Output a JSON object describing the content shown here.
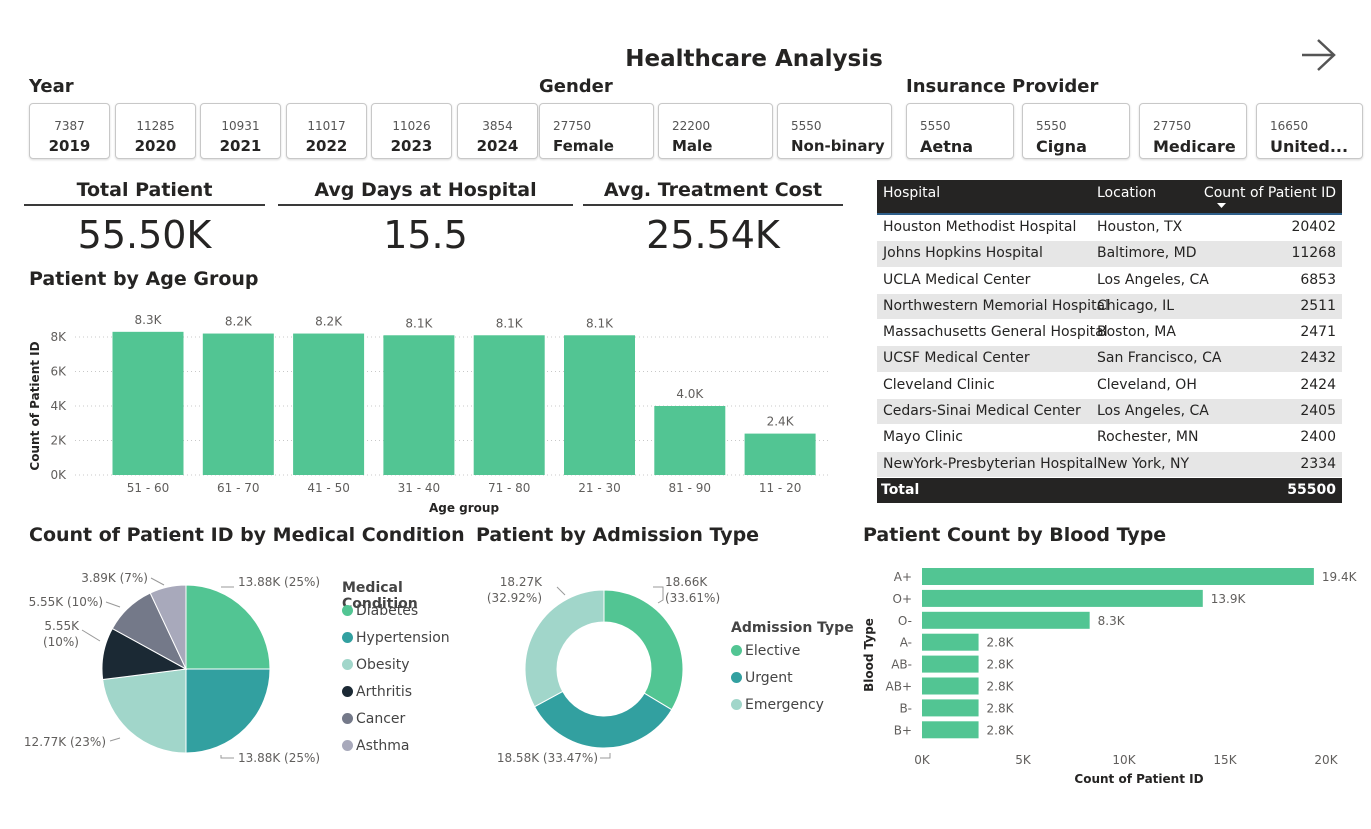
{
  "page": {
    "title": "Healthcare Analysis",
    "icons": {
      "next": "right-arrow-icon"
    }
  },
  "colors": {
    "green": "#52c593",
    "teal": "#32a0a0",
    "light_teal": "#a1d6ca",
    "navy": "#1b2934",
    "slate": "#747989",
    "light_gray": "#a8a9bb",
    "header_dark": "#252423"
  },
  "slicers": {
    "year": {
      "title": "Year",
      "items": [
        {
          "count": "7387",
          "label": "2019"
        },
        {
          "count": "11285",
          "label": "2020"
        },
        {
          "count": "10931",
          "label": "2021"
        },
        {
          "count": "11017",
          "label": "2022"
        },
        {
          "count": "11026",
          "label": "2023"
        },
        {
          "count": "3854",
          "label": "2024"
        }
      ]
    },
    "gender": {
      "title": "Gender",
      "items": [
        {
          "count": "27750",
          "label": "Female"
        },
        {
          "count": "22200",
          "label": "Male"
        },
        {
          "count": "5550",
          "label": "Non-binary"
        }
      ]
    },
    "insurance": {
      "title": "Insurance Provider",
      "items": [
        {
          "count": "5550",
          "label": "Aetna"
        },
        {
          "count": "5550",
          "label": "Cigna"
        },
        {
          "count": "27750",
          "label": "Medicare"
        },
        {
          "count": "16650",
          "label": "United..."
        }
      ]
    }
  },
  "kpis": [
    {
      "title": "Total Patient",
      "value": "55.50K"
    },
    {
      "title": "Avg Days at Hospital",
      "value": "15.5"
    },
    {
      "title": "Avg. Treatment Cost",
      "value": "25.54K"
    }
  ],
  "hospital_table": {
    "headers": [
      "Hospital",
      "Location",
      "Count of Patient ID"
    ],
    "rows": [
      [
        "Houston Methodist Hospital",
        "Houston, TX",
        "20402"
      ],
      [
        "Johns Hopkins Hospital",
        "Baltimore, MD",
        "11268"
      ],
      [
        "UCLA Medical Center",
        "Los Angeles, CA",
        "6853"
      ],
      [
        "Northwestern Memorial Hospital",
        "Chicago, IL",
        "2511"
      ],
      [
        "Massachusetts General Hospital",
        "Boston, MA",
        "2471"
      ],
      [
        "UCSF Medical Center",
        "San Francisco, CA",
        "2432"
      ],
      [
        "Cleveland Clinic",
        "Cleveland, OH",
        "2424"
      ],
      [
        "Cedars-Sinai Medical Center",
        "Los Angeles, CA",
        "2405"
      ],
      [
        "Mayo Clinic",
        "Rochester, MN",
        "2400"
      ],
      [
        "NewYork-Presbyterian Hospital",
        "New York, NY",
        "2334"
      ]
    ],
    "total_label": "Total",
    "total_value": "55500"
  },
  "chart_data": [
    {
      "id": "age",
      "type": "bar",
      "title": "Patient by Age Group",
      "xlabel": "Age group",
      "ylabel": "Count of Patient ID",
      "categories": [
        "51 - 60",
        "61 - 70",
        "41 - 50",
        "31 - 40",
        "71 - 80",
        "21 - 30",
        "81 - 90",
        "11 - 20"
      ],
      "values": [
        8300,
        8200,
        8200,
        8100,
        8100,
        8100,
        4000,
        2400
      ],
      "data_labels": [
        "8.3K",
        "8.2K",
        "8.2K",
        "8.1K",
        "8.1K",
        "8.1K",
        "4.0K",
        "2.4K"
      ],
      "yticks": [
        "0K",
        "2K",
        "4K",
        "6K",
        "8K"
      ],
      "ylim": [
        0,
        8000
      ],
      "grid": true
    },
    {
      "id": "condition",
      "type": "pie",
      "title": "Count of Patient ID by Medical Condition",
      "legend_title": "Medical Condition",
      "categories": [
        "Diabetes",
        "Hypertension",
        "Obesity",
        "Arthritis",
        "Cancer",
        "Asthma"
      ],
      "values": [
        13880,
        13880,
        12770,
        5550,
        5550,
        3890
      ],
      "labels": [
        "13.88K (25%)",
        "13.88K (25%)",
        "12.77K (23%)",
        "5.55K (10%)",
        "5.55K (10%)",
        "3.89K (7%)"
      ]
    },
    {
      "id": "admission",
      "type": "pie",
      "title": "Patient by Admission Type",
      "legend_title": "Admission Type",
      "categories": [
        "Elective",
        "Urgent",
        "Emergency"
      ],
      "values": [
        18660,
        18580,
        18270
      ],
      "labels": [
        "18.66K (33.61%)",
        "18.58K (33.47%)",
        "18.27K (32.92%)"
      ]
    },
    {
      "id": "blood",
      "type": "bar",
      "title": "Patient Count by Blood Type",
      "xlabel": "Count of Patient ID",
      "ylabel": "Blood Type",
      "categories": [
        "A+",
        "O+",
        "O-",
        "A-",
        "AB-",
        "AB+",
        "B-",
        "B+"
      ],
      "values": [
        19400,
        13900,
        8300,
        2800,
        2800,
        2800,
        2800,
        2800
      ],
      "data_labels": [
        "19.4K",
        "13.9K",
        "8.3K",
        "2.8K",
        "2.8K",
        "2.8K",
        "2.8K",
        "2.8K"
      ],
      "xticks": [
        "0K",
        "5K",
        "10K",
        "15K",
        "20K"
      ],
      "xlim": [
        0,
        20000
      ]
    }
  ]
}
